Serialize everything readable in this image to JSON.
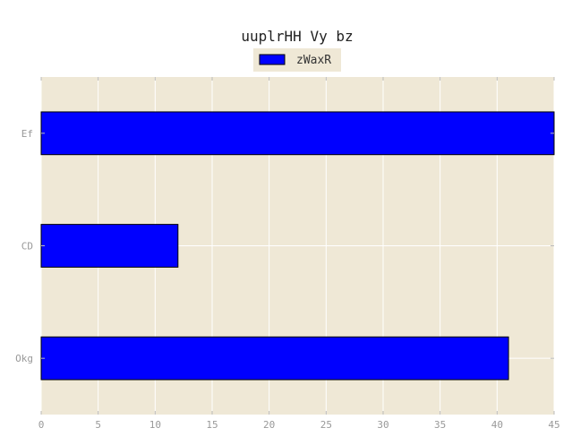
{
  "chart_data": {
    "type": "bar",
    "orientation": "horizontal",
    "title": "uuplrHH Vy bz",
    "xlabel": "",
    "ylabel": "",
    "categories": [
      "Okg",
      "CD",
      "Ef"
    ],
    "series": [
      {
        "name": "zWaxR",
        "values": [
          41,
          12,
          45
        ],
        "color": "#0000ff"
      }
    ],
    "xlim": [
      0,
      45
    ],
    "xticks": [
      0,
      5,
      10,
      15,
      20,
      25,
      30,
      35,
      40,
      45
    ],
    "grid": true,
    "legend_position": "top-center",
    "colors": {
      "plot_background": "#efe8d6",
      "bar_fill": "#0000ff",
      "bar_edge": "#000000",
      "grid": "#ffffff",
      "tick_label": "#999999",
      "title": "#222222"
    }
  }
}
